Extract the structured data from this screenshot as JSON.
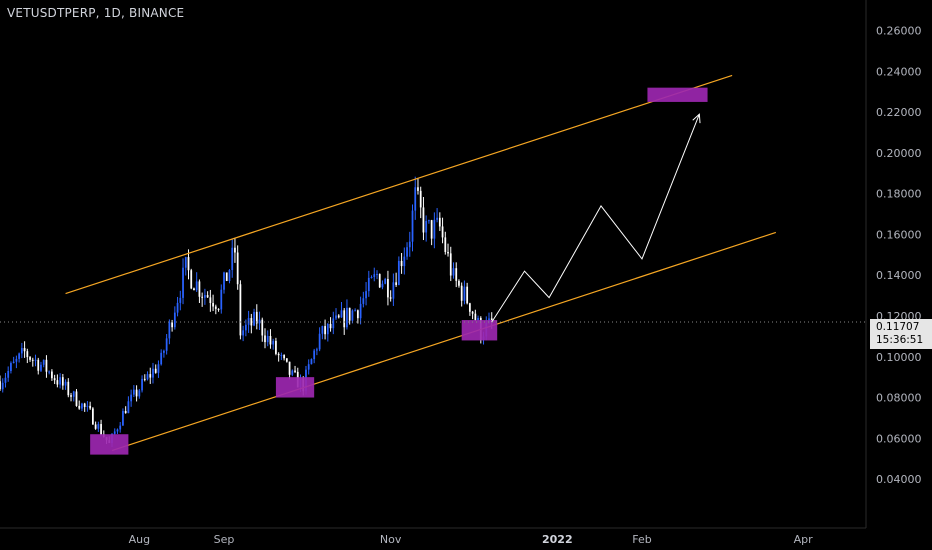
{
  "header": {
    "symbol_title": "VETUSDTPERP, 1D, BINANCE"
  },
  "price_label": {
    "price": "0.11707",
    "countdown": "15:36:51"
  },
  "colors": {
    "background": "#000000",
    "candle_up": "#2962ff",
    "candle_down": "#ffffff",
    "channel_line": "#f5a623",
    "zone_fill": "#9c27b0",
    "projection": "#ffffff",
    "axis_text": "#b2b5be"
  },
  "chart_data": {
    "type": "candlestick",
    "title": "VETUSDTPERP, 1D, BINANCE",
    "y_ticks": [
      "0.04000",
      "0.06000",
      "0.08000",
      "0.10000",
      "0.12000",
      "0.14000",
      "0.16000",
      "0.18000",
      "0.20000",
      "0.22000",
      "0.24000",
      "0.26000"
    ],
    "y_tick_values": [
      0.04,
      0.06,
      0.08,
      0.1,
      0.12,
      0.14,
      0.16,
      0.18,
      0.2,
      0.22,
      0.24,
      0.26
    ],
    "x_ticks": [
      {
        "label": "Aug",
        "date": "2021-08-01"
      },
      {
        "label": "Sep",
        "date": "2021-09-01"
      },
      {
        "label": "Nov",
        "date": "2021-11-01"
      },
      {
        "label": "2022",
        "date": "2022-01-01"
      },
      {
        "label": "Feb",
        "date": "2022-02-01"
      },
      {
        "label": "Apr",
        "date": "2022-04-01"
      }
    ],
    "ylim": [
      0.016,
      0.275
    ],
    "xlim": [
      "2021-06-11",
      "2022-04-24"
    ],
    "grid": false,
    "current_price": 0.11707,
    "anchors": [
      [
        "2021-06-11",
        0.088
      ],
      [
        "2021-06-20",
        0.102
      ],
      [
        "2021-06-28",
        0.094
      ],
      [
        "2021-07-06",
        0.083
      ],
      [
        "2021-07-14",
        0.072
      ],
      [
        "2021-07-21",
        0.057
      ],
      [
        "2021-07-27",
        0.075
      ],
      [
        "2021-08-03",
        0.088
      ],
      [
        "2021-08-09",
        0.098
      ],
      [
        "2021-08-14",
        0.125
      ],
      [
        "2021-08-18",
        0.143
      ],
      [
        "2021-08-24",
        0.132
      ],
      [
        "2021-08-30",
        0.127
      ],
      [
        "2021-09-05",
        0.152
      ],
      [
        "2021-09-07",
        0.112
      ],
      [
        "2021-09-13",
        0.118
      ],
      [
        "2021-09-20",
        0.102
      ],
      [
        "2021-09-26",
        0.09
      ],
      [
        "2021-09-30",
        0.086
      ],
      [
        "2021-10-06",
        0.11
      ],
      [
        "2021-10-13",
        0.117
      ],
      [
        "2021-10-20",
        0.124
      ],
      [
        "2021-10-27",
        0.14
      ],
      [
        "2021-11-01",
        0.134
      ],
      [
        "2021-11-08",
        0.16
      ],
      [
        "2021-11-10",
        0.178
      ],
      [
        "2021-11-14",
        0.162
      ],
      [
        "2021-11-19",
        0.163
      ],
      [
        "2021-11-24",
        0.138
      ],
      [
        "2021-11-30",
        0.126
      ],
      [
        "2021-12-04",
        0.112
      ],
      [
        "2021-12-08",
        0.116
      ]
    ],
    "channel_upper": [
      [
        "2021-07-05",
        0.131
      ],
      [
        "2022-03-06",
        0.238
      ]
    ],
    "channel_lower": [
      [
        "2021-07-22",
        0.054
      ],
      [
        "2022-03-22",
        0.161
      ]
    ],
    "zones": [
      {
        "x0": "2021-07-14",
        "x1": "2021-07-28",
        "y0": 0.052,
        "y1": 0.062
      },
      {
        "x0": "2021-09-20",
        "x1": "2021-10-04",
        "y0": 0.08,
        "y1": 0.09
      },
      {
        "x0": "2021-11-27",
        "x1": "2021-12-10",
        "y0": 0.108,
        "y1": 0.118
      },
      {
        "x0": "2022-02-03",
        "x1": "2022-02-25",
        "y0": 0.225,
        "y1": 0.232
      }
    ],
    "projection": [
      [
        "2021-12-08",
        0.117
      ],
      [
        "2021-12-20",
        0.142
      ],
      [
        "2021-12-29",
        0.129
      ],
      [
        "2022-01-17",
        0.174
      ],
      [
        "2022-02-01",
        0.148
      ],
      [
        "2022-02-22",
        0.219
      ]
    ]
  }
}
